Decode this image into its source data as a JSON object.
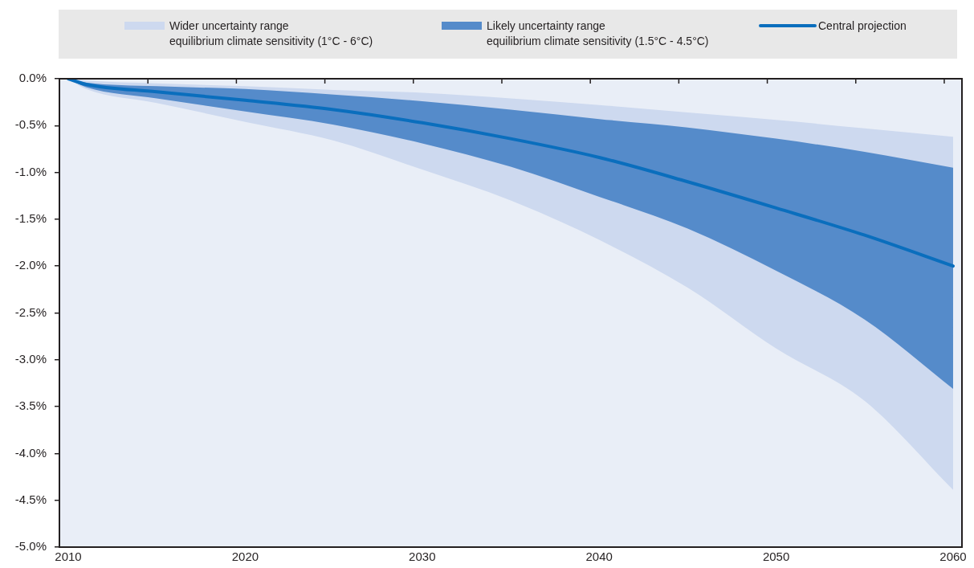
{
  "chart_data": {
    "type": "line",
    "x": [
      2010,
      2011,
      2015,
      2020,
      2025,
      2030,
      2035,
      2040,
      2045,
      2050,
      2055,
      2060
    ],
    "series": [
      {
        "name": "Wider uncertainty range\nequilibrium climate sensitivity (1°C - 6°C)",
        "color": "#cdd9ef",
        "values": [
          null,
          null,
          null,
          null,
          null,
          null,
          null,
          null,
          null,
          null,
          null,
          null
        ],
        "lower": [
          0,
          -0.11,
          -0.26,
          -0.46,
          -0.66,
          -0.97,
          -1.3,
          -1.72,
          -2.23,
          -2.88,
          -3.44,
          -4.39
        ],
        "upper": [
          0,
          -0.02,
          -0.05,
          -0.08,
          -0.12,
          -0.15,
          -0.21,
          -0.28,
          -0.36,
          -0.44,
          -0.53,
          -0.62
        ]
      },
      {
        "name": "Likely uncertainty range\nequilibrium climate sensitivity (1.5°C - 4.5°C)",
        "color": "#558bca",
        "values": [
          null,
          null,
          null,
          null,
          null,
          null,
          null,
          null,
          null,
          null,
          null,
          null
        ],
        "lower": [
          0,
          -0.09,
          -0.21,
          -0.35,
          -0.49,
          -0.69,
          -0.94,
          -1.26,
          -1.6,
          -2.05,
          -2.57,
          -3.31
        ],
        "upper": [
          0,
          -0.04,
          -0.08,
          -0.11,
          -0.17,
          -0.24,
          -0.33,
          -0.43,
          -0.52,
          -0.64,
          -0.78,
          -0.95
        ]
      },
      {
        "name": "Central projection",
        "color": "#0a6ebd",
        "values": [
          0,
          -0.06,
          -0.14,
          -0.23,
          -0.33,
          -0.47,
          -0.64,
          -0.84,
          -1.1,
          -1.38,
          -1.67,
          -2.0
        ]
      }
    ],
    "xlim": [
      2009.5,
      2060.5
    ],
    "xticks": [
      2010,
      {
        "value": 2014.5,
        "label": null
      },
      {
        "value": 2019.5,
        "label": null
      },
      2020,
      {
        "value": 2024.5,
        "label": null
      },
      {
        "value": 2029.5,
        "label": null
      },
      2030,
      {
        "value": 2034.5,
        "label": null
      },
      {
        "value": 2039.5,
        "label": null
      },
      2040,
      {
        "value": 2044.5,
        "label": null
      },
      {
        "value": 2049.5,
        "label": null
      },
      2050,
      {
        "value": 2054.5,
        "label": null
      },
      {
        "value": 2059.5,
        "label": null
      },
      2060
    ],
    "ylim": [
      -5,
      0
    ],
    "yticks": [
      {
        "value": 0,
        "label": "0.0%"
      },
      {
        "value": -0.5,
        "label": "-0.5%"
      },
      {
        "value": -1,
        "label": "-1.0%"
      },
      {
        "value": -1.5,
        "label": "-1.5%"
      },
      {
        "value": -2,
        "label": "-2.0%"
      },
      {
        "value": -2.5,
        "label": "-2.5%"
      },
      {
        "value": -3,
        "label": "-3.0%"
      },
      {
        "value": -3.5,
        "label": "-3.5%"
      },
      {
        "value": -4,
        "label": "-4.0%"
      },
      {
        "value": -4.5,
        "label": "-4.5%"
      },
      {
        "value": -5,
        "label": "-5.0%"
      }
    ],
    "grid": false,
    "legend": "top",
    "marker": "none"
  }
}
